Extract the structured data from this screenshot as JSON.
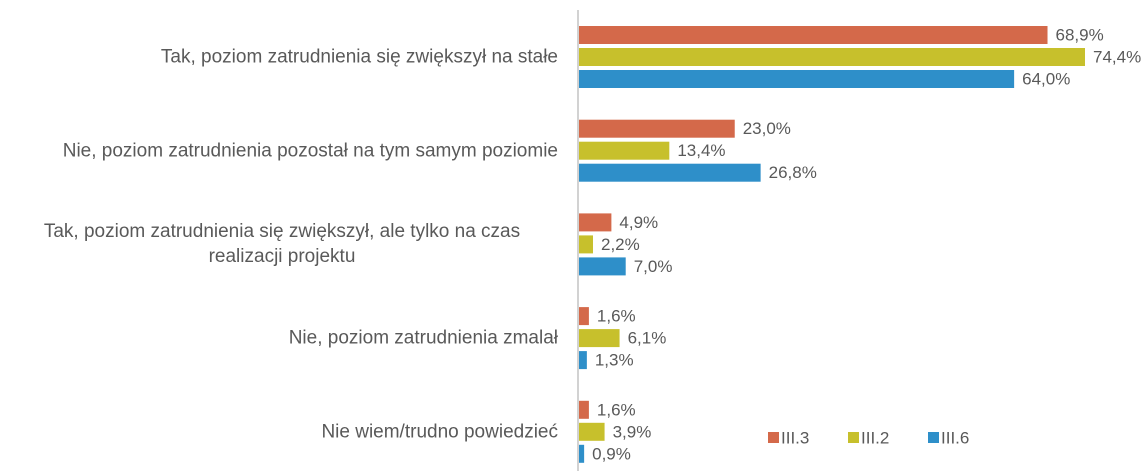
{
  "chart_data": {
    "type": "hbar",
    "categories": [
      "Tak, poziom zatrudnienia się zwiększył na stałe",
      "Nie, poziom zatrudnienia pozostał na tym samym poziomie",
      "Tak, poziom zatrudnienia się zwiększył, ale tylko na czas realizacji projektu",
      "Nie, poziom zatrudnienia zmalał",
      "Nie wiem/trudno powiedzieć"
    ],
    "series": [
      {
        "name": "III.3",
        "color": "#d4694a",
        "values": [
          68.9,
          23.0,
          4.9,
          1.6,
          1.6
        ],
        "value_labels": [
          "68,9%",
          "23,0%",
          "4,9%",
          "1,6%",
          "1,6%"
        ]
      },
      {
        "name": "III.2",
        "color": "#c7c02c",
        "values": [
          74.4,
          13.4,
          2.2,
          6.1,
          3.9
        ],
        "value_labels": [
          "74,4%",
          "13,4%",
          "2,2%",
          "6,1%",
          "3,9%"
        ]
      },
      {
        "name": "III.6",
        "color": "#2e8fc9",
        "values": [
          64.0,
          26.8,
          7.0,
          1.3,
          0.9
        ],
        "value_labels": [
          "64,0%",
          "26,8%",
          "7,0%",
          "1,3%",
          "0,9%"
        ]
      }
    ],
    "legend": "bottom-right"
  }
}
